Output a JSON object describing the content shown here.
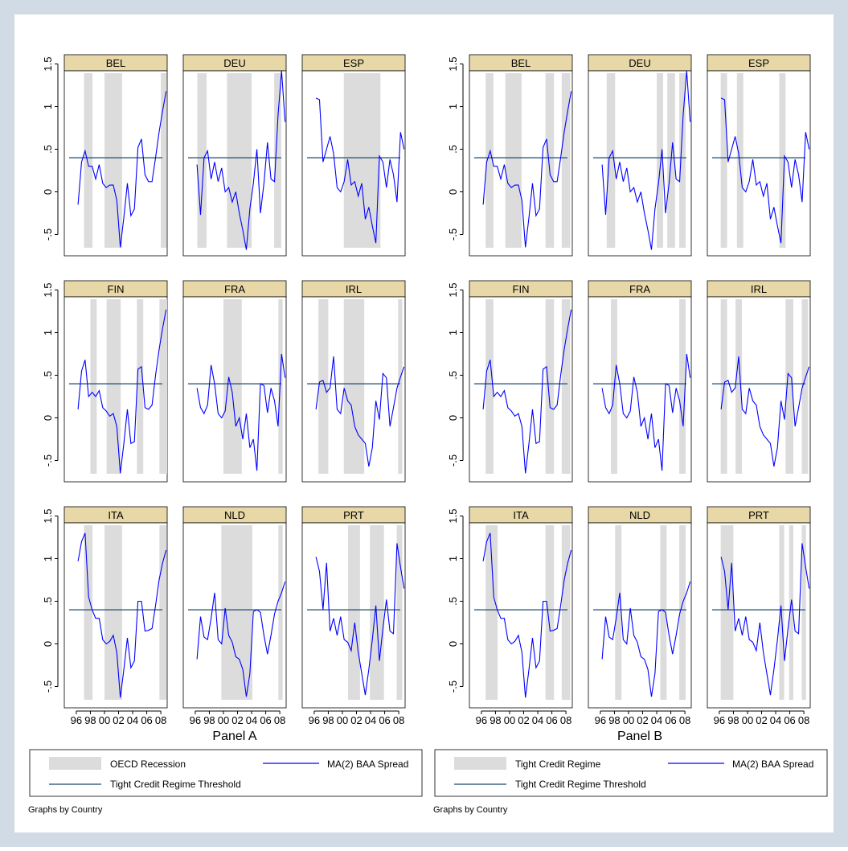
{
  "chart_data": [
    {
      "type": "line",
      "xlabel": "Panel A",
      "note": "Graphs by Country",
      "xlim": [
        1994.3,
        2008.9
      ],
      "ylim": [
        -0.75,
        1.42
      ],
      "xticks": [
        {
          "value": 1996,
          "label": "96"
        },
        {
          "value": 1998,
          "label": "98"
        },
        {
          "value": 2000,
          "label": "00"
        },
        {
          "value": 2002,
          "label": "02"
        },
        {
          "value": 2004,
          "label": "04"
        },
        {
          "value": 2006,
          "label": "06"
        },
        {
          "value": 2008,
          "label": "08"
        }
      ],
      "yticks": [
        {
          "value": -0.5,
          "label": "-.5"
        },
        0,
        {
          "value": 0.5,
          "label": ".5"
        },
        1,
        1.5
      ],
      "x": [
        1996.25,
        1996.75,
        1997.25,
        1997.75,
        1998.25,
        1998.75,
        1999.25,
        1999.75,
        2000.25,
        2000.75,
        2001.25,
        2001.75,
        2002.25,
        2002.75,
        2003.25,
        2003.75,
        2004.25,
        2004.75,
        2005.25,
        2005.75,
        2006.25,
        2006.75,
        2007.25,
        2007.75,
        2008.25,
        2008.75
      ],
      "series_name": "MA(2) BAA Spread",
      "color": "#0000ff",
      "threshold": {
        "name": "Tight Credit Regime Threshold",
        "value": 0.4,
        "color": "#1a476f"
      },
      "regions_name": "OECD Recession",
      "regions_color": "#dcdcdc",
      "facets": [
        {
          "title": "BEL",
          "values": [
            -0.15,
            0.35,
            0.48,
            0.3,
            0.3,
            0.15,
            0.32,
            0.1,
            0.05,
            0.08,
            0.08,
            -0.1,
            -0.65,
            -0.3,
            0.1,
            -0.28,
            -0.2,
            0.52,
            0.62,
            0.2,
            0.12,
            0.12,
            0.4,
            0.7,
            0.95,
            1.18
          ],
          "regions": [
            [
              1997.1,
              1998.3
            ],
            [
              2000,
              2002.5
            ],
            [
              2008,
              2008.8
            ]
          ]
        },
        {
          "title": "DEU",
          "values": [
            0.32,
            -0.27,
            0.4,
            0.48,
            0.15,
            0.35,
            0.12,
            0.28,
            0,
            0.05,
            -0.12,
            0,
            -0.25,
            -0.45,
            -0.68,
            -0.2,
            0.1,
            0.5,
            -0.25,
            0.1,
            0.58,
            0.15,
            0.12,
            0.9,
            1.42,
            0.82
          ],
          "regions": [
            [
              1996.3,
              1997.6
            ],
            [
              2000.5,
              2004
            ],
            [
              2007.2,
              2008.2
            ]
          ]
        },
        {
          "title": "ESP",
          "values": [
            1.1,
            1.08,
            0.35,
            0.5,
            0.65,
            0.45,
            0.05,
            0,
            0.12,
            0.38,
            0.08,
            0.12,
            -0.05,
            0.1,
            -0.32,
            -0.18,
            -0.4,
            -0.6,
            0.42,
            0.35,
            0.05,
            0.38,
            0.2,
            -0.12,
            0.7,
            0.5
          ],
          "regions": [
            [
              2000.2,
              2005.4
            ]
          ]
        },
        {
          "title": "FIN",
          "values": [
            0.1,
            0.55,
            0.68,
            0.25,
            0.3,
            0.25,
            0.32,
            0.12,
            0.08,
            0.02,
            0.05,
            -0.1,
            -0.65,
            -0.3,
            0.1,
            -0.3,
            -0.28,
            0.57,
            0.6,
            0.12,
            0.1,
            0.15,
            0.5,
            0.8,
            1.05,
            1.27
          ],
          "regions": [
            [
              1998,
              1998.9
            ],
            [
              2000.3,
              2002.3
            ],
            [
              2004.6,
              2005.5
            ],
            [
              2007.8,
              2008.9
            ]
          ]
        },
        {
          "title": "FRA",
          "values": [
            0.35,
            0.12,
            0.05,
            0.15,
            0.62,
            0.4,
            0.05,
            0,
            0.08,
            0.48,
            0.3,
            -0.1,
            0,
            -0.25,
            0.05,
            -0.35,
            -0.25,
            -0.62,
            0.4,
            0.38,
            0.06,
            0.35,
            0.2,
            -0.1,
            0.75,
            0.47
          ],
          "regions": [
            [
              2000,
              2002.6
            ],
            [
              2007.8,
              2008.4
            ]
          ]
        },
        {
          "title": "IRL",
          "values": [
            0.1,
            0.42,
            0.44,
            0.3,
            0.35,
            0.72,
            0.1,
            0.05,
            0.35,
            0.2,
            0.15,
            -0.1,
            -0.2,
            -0.25,
            -0.3,
            -0.57,
            -0.35,
            0.2,
            -0.02,
            0.52,
            0.47,
            -0.1,
            0.12,
            0.35,
            0.48,
            0.6
          ],
          "regions": [
            [
              1996.6,
              1998
            ],
            [
              2000.2,
              2003.1
            ],
            [
              2007.9,
              2008.5
            ]
          ]
        },
        {
          "title": "ITA",
          "values": [
            0.97,
            1.2,
            1.3,
            0.55,
            0.4,
            0.3,
            0.3,
            0.05,
            0,
            0.03,
            0.1,
            -0.1,
            -0.63,
            -0.3,
            0.07,
            -0.28,
            -0.2,
            0.5,
            0.5,
            0.15,
            0.16,
            0.18,
            0.45,
            0.75,
            0.95,
            1.1
          ],
          "regions": [
            [
              1997.1,
              1998.3
            ],
            [
              2000,
              2002.5
            ],
            [
              2007.8,
              2008.8
            ]
          ]
        },
        {
          "title": "NLD",
          "values": [
            -0.18,
            0.32,
            0.08,
            0.05,
            0.3,
            0.6,
            0.05,
            0,
            0.42,
            0.1,
            0.02,
            -0.15,
            -0.18,
            -0.3,
            -0.62,
            -0.35,
            0.38,
            0.4,
            0.37,
            0.1,
            -0.12,
            0.1,
            0.35,
            0.5,
            0.6,
            0.73
          ],
          "regions": [
            [
              1999.7,
              2004.1
            ],
            [
              2007.8,
              2008.4
            ]
          ]
        },
        {
          "title": "PRT",
          "values": [
            1.02,
            0.85,
            0.4,
            0.95,
            0.15,
            0.3,
            0.1,
            0.32,
            0.05,
            0.02,
            -0.08,
            0.25,
            -0.1,
            -0.35,
            -0.6,
            -0.3,
            0.05,
            0.45,
            -0.2,
            0.18,
            0.52,
            0.15,
            0.12,
            1.18,
            0.9,
            0.65
          ],
          "regions": [
            [
              2000.8,
              2002.5
            ],
            [
              2003.9,
              2005.9
            ],
            [
              2007.7,
              2008.5
            ]
          ]
        }
      ]
    },
    {
      "type": "line",
      "xlabel": "Panel B",
      "note": "Graphs by Country",
      "xlim": [
        1994.3,
        2008.9
      ],
      "ylim": [
        -0.75,
        1.42
      ],
      "xticks": [
        {
          "value": 1996,
          "label": "96"
        },
        {
          "value": 1998,
          "label": "98"
        },
        {
          "value": 2000,
          "label": "00"
        },
        {
          "value": 2002,
          "label": "02"
        },
        {
          "value": 2004,
          "label": "04"
        },
        {
          "value": 2006,
          "label": "06"
        },
        {
          "value": 2008,
          "label": "08"
        }
      ],
      "yticks": [
        {
          "value": -0.5,
          "label": "-.5"
        },
        0,
        {
          "value": 0.5,
          "label": ".5"
        },
        1,
        1.5
      ],
      "x": [
        1996.25,
        1996.75,
        1997.25,
        1997.75,
        1998.25,
        1998.75,
        1999.25,
        1999.75,
        2000.25,
        2000.75,
        2001.25,
        2001.75,
        2002.25,
        2002.75,
        2003.25,
        2003.75,
        2004.25,
        2004.75,
        2005.25,
        2005.75,
        2006.25,
        2006.75,
        2007.25,
        2007.75,
        2008.25,
        2008.75
      ],
      "series_name": "MA(2) BAA Spread",
      "color": "#0000ff",
      "threshold": {
        "name": "Tight Credit Regime Threshold",
        "value": 0.4,
        "color": "#1a476f"
      },
      "regions_name": "Tight Credit Regime",
      "regions_color": "#dcdcdc",
      "facets": [
        {
          "title": "BEL",
          "values": [
            -0.15,
            0.35,
            0.48,
            0.3,
            0.3,
            0.15,
            0.32,
            0.1,
            0.05,
            0.08,
            0.08,
            -0.1,
            -0.65,
            -0.3,
            0.1,
            -0.28,
            -0.2,
            0.52,
            0.62,
            0.2,
            0.12,
            0.12,
            0.4,
            0.7,
            0.95,
            1.18
          ],
          "regions": [
            [
              1996.6,
              1997.7
            ],
            [
              1999.4,
              2001.7
            ],
            [
              2005.1,
              2006.3
            ],
            [
              2007.4,
              2008.6
            ]
          ]
        },
        {
          "title": "DEU",
          "values": [
            0.32,
            -0.27,
            0.4,
            0.48,
            0.15,
            0.35,
            0.12,
            0.28,
            0,
            0.05,
            -0.12,
            0,
            -0.25,
            -0.45,
            -0.68,
            -0.2,
            0.1,
            0.5,
            -0.25,
            0.1,
            0.58,
            0.15,
            0.12,
            0.9,
            1.42,
            0.82
          ],
          "regions": [
            [
              1996.9,
              1998.1
            ],
            [
              2004,
              2004.9
            ],
            [
              2005.5,
              2006.6
            ],
            [
              2007.2,
              2008.1
            ]
          ]
        },
        {
          "title": "ESP",
          "values": [
            1.1,
            1.08,
            0.35,
            0.5,
            0.65,
            0.45,
            0.05,
            0,
            0.12,
            0.38,
            0.08,
            0.12,
            -0.05,
            0.1,
            -0.32,
            -0.18,
            -0.4,
            -0.6,
            0.42,
            0.35,
            0.05,
            0.38,
            0.2,
            -0.12,
            0.7,
            0.5
          ],
          "regions": [
            [
              1996.2,
              1997.1
            ],
            [
              1998.5,
              1999.4
            ],
            [
              2004.5,
              2005.4
            ]
          ]
        },
        {
          "title": "FIN",
          "values": [
            0.1,
            0.55,
            0.68,
            0.25,
            0.3,
            0.25,
            0.32,
            0.12,
            0.08,
            0.02,
            0.05,
            -0.1,
            -0.65,
            -0.3,
            0.1,
            -0.3,
            -0.28,
            0.57,
            0.6,
            0.12,
            0.1,
            0.15,
            0.5,
            0.8,
            1.05,
            1.27
          ],
          "regions": [
            [
              1996.6,
              1997.7
            ],
            [
              2005.1,
              2006.3
            ],
            [
              2007.4,
              2008.6
            ]
          ]
        },
        {
          "title": "FRA",
          "values": [
            0.35,
            0.12,
            0.05,
            0.15,
            0.62,
            0.4,
            0.05,
            0,
            0.08,
            0.48,
            0.3,
            -0.1,
            0,
            -0.25,
            0.05,
            -0.35,
            -0.25,
            -0.62,
            0.4,
            0.38,
            0.06,
            0.35,
            0.2,
            -0.1,
            0.75,
            0.47
          ],
          "regions": [
            [
              1997.5,
              1998.4
            ],
            [
              2007.2,
              2008.1
            ]
          ]
        },
        {
          "title": "IRL",
          "values": [
            0.1,
            0.42,
            0.44,
            0.3,
            0.35,
            0.72,
            0.1,
            0.05,
            0.35,
            0.2,
            0.15,
            -0.1,
            -0.2,
            -0.25,
            -0.3,
            -0.57,
            -0.35,
            0.2,
            -0.02,
            0.52,
            0.47,
            -0.1,
            0.12,
            0.35,
            0.48,
            0.6
          ],
          "regions": [
            [
              1996.2,
              1997.1
            ],
            [
              1998.3,
              1999.2
            ],
            [
              2005.4,
              2006.5
            ],
            [
              2007.7,
              2008.6
            ]
          ]
        },
        {
          "title": "ITA",
          "values": [
            0.97,
            1.2,
            1.3,
            0.55,
            0.4,
            0.3,
            0.3,
            0.05,
            0,
            0.03,
            0.1,
            -0.1,
            -0.63,
            -0.3,
            0.07,
            -0.28,
            -0.2,
            0.5,
            0.5,
            0.15,
            0.16,
            0.18,
            0.45,
            0.75,
            0.95,
            1.1
          ],
          "regions": [
            [
              1996.6,
              1998.3
            ],
            [
              2005.1,
              2006.3
            ],
            [
              2007.4,
              2008.6
            ]
          ]
        },
        {
          "title": "NLD",
          "values": [
            -0.18,
            0.32,
            0.08,
            0.05,
            0.3,
            0.6,
            0.05,
            0,
            0.42,
            0.1,
            0.02,
            -0.15,
            -0.18,
            -0.3,
            -0.62,
            -0.35,
            0.38,
            0.4,
            0.37,
            0.1,
            -0.12,
            0.1,
            0.35,
            0.5,
            0.6,
            0.73
          ],
          "regions": [
            [
              1998.1,
              1999
            ],
            [
              2004.5,
              2005.4
            ],
            [
              2007.2,
              2008.1
            ]
          ]
        },
        {
          "title": "PRT",
          "values": [
            1.02,
            0.85,
            0.4,
            0.95,
            0.15,
            0.3,
            0.1,
            0.32,
            0.05,
            0.02,
            -0.08,
            0.25,
            -0.1,
            -0.35,
            -0.6,
            -0.3,
            0.05,
            0.45,
            -0.2,
            0.18,
            0.52,
            0.15,
            0.12,
            1.18,
            0.9,
            0.65
          ],
          "regions": [
            [
              1996.2,
              1998
            ],
            [
              2004.5,
              2005.2
            ],
            [
              2005.9,
              2006.5
            ],
            [
              2007.7,
              2008.3
            ]
          ]
        }
      ]
    }
  ]
}
